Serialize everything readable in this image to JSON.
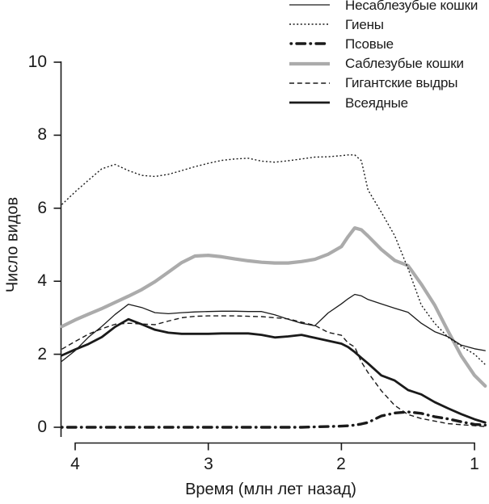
{
  "colors": {
    "line_black": "#1a1a1a",
    "saber_gray": "#ababab",
    "background": "#ffffff"
  },
  "legend": {
    "items": [
      {
        "key": "nonsabertooth-cats",
        "label": "Несаблезубые кошки",
        "style": "thin-solid",
        "color": "#1a1a1a"
      },
      {
        "key": "hyenas",
        "label": "Гиены",
        "style": "fine-dotted",
        "color": "#1a1a1a"
      },
      {
        "key": "canids",
        "label": "Псовые",
        "style": "bold-dash-dot",
        "color": "#1a1a1a"
      },
      {
        "key": "sabertooth-cats",
        "label": "Саблезубые кошки",
        "style": "thick-gray",
        "color": "#ababab"
      },
      {
        "key": "giant-otters",
        "label": "Гигантские выдры",
        "style": "dashed",
        "color": "#1a1a1a"
      },
      {
        "key": "omnivores",
        "label": "Всеядные",
        "style": "thick-solid",
        "color": "#1a1a1a"
      }
    ]
  },
  "chart_data": {
    "type": "line",
    "title": "",
    "xlabel": "Время (млн лет назад)",
    "ylabel": "Число видов",
    "xticks": [
      4,
      3,
      2,
      1
    ],
    "yticks": [
      0,
      2,
      4,
      6,
      8,
      10
    ],
    "ylim": [
      0,
      10
    ],
    "xlim": [
      4.1,
      0.92
    ],
    "x_axis_reversed": true,
    "grid": false,
    "legend_position": "top-right",
    "x": [
      4.1,
      4.0,
      3.9,
      3.8,
      3.7,
      3.6,
      3.5,
      3.4,
      3.3,
      3.2,
      3.1,
      3.0,
      2.9,
      2.8,
      2.7,
      2.6,
      2.5,
      2.4,
      2.3,
      2.2,
      2.1,
      2.0,
      1.95,
      1.9,
      1.85,
      1.8,
      1.7,
      1.6,
      1.5,
      1.4,
      1.3,
      1.2,
      1.1,
      1.0,
      0.92
    ],
    "series": [
      {
        "name": "Несаблезубые кошки",
        "key": "nonsabertooth-cats",
        "style": "thin-solid",
        "color": "#1a1a1a",
        "values": [
          1.81,
          2.1,
          2.47,
          2.76,
          3.09,
          3.37,
          3.28,
          3.14,
          3.11,
          3.14,
          3.16,
          3.17,
          3.18,
          3.18,
          3.17,
          3.17,
          3.08,
          2.96,
          2.85,
          2.78,
          3.13,
          3.38,
          3.52,
          3.64,
          3.6,
          3.5,
          3.38,
          3.26,
          3.15,
          2.85,
          2.62,
          2.48,
          2.25,
          2.15,
          2.1
        ]
      },
      {
        "name": "Гиены",
        "key": "hyenas",
        "style": "fine-dotted",
        "color": "#1a1a1a",
        "values": [
          6.1,
          6.45,
          6.77,
          7.08,
          7.2,
          7.03,
          6.9,
          6.87,
          6.93,
          7.03,
          7.14,
          7.23,
          7.31,
          7.35,
          7.37,
          7.29,
          7.26,
          7.3,
          7.35,
          7.4,
          7.41,
          7.44,
          7.46,
          7.46,
          7.3,
          6.5,
          5.89,
          5.25,
          4.35,
          3.35,
          2.85,
          2.47,
          2.22,
          2.0,
          1.72
        ]
      },
      {
        "name": "Псовые",
        "key": "canids",
        "style": "bold-dash-dot",
        "color": "#1a1a1a",
        "values": [
          0,
          0,
          0,
          0,
          0,
          0,
          0,
          0,
          0,
          0,
          0,
          0,
          0,
          0,
          0,
          0,
          0,
          0,
          0,
          0.01,
          0.02,
          0.03,
          0.04,
          0.06,
          0.09,
          0.13,
          0.31,
          0.39,
          0.42,
          0.38,
          0.29,
          0.23,
          0.15,
          0.08,
          0.06
        ]
      },
      {
        "name": "Саблезубые кошки",
        "key": "sabertooth-cats",
        "style": "thick-gray",
        "color": "#ababab",
        "values": [
          2.76,
          2.94,
          3.1,
          3.25,
          3.42,
          3.59,
          3.77,
          3.99,
          4.25,
          4.51,
          4.69,
          4.71,
          4.67,
          4.61,
          4.56,
          4.52,
          4.5,
          4.5,
          4.54,
          4.6,
          4.74,
          4.95,
          5.22,
          5.46,
          5.41,
          5.24,
          4.87,
          4.57,
          4.43,
          3.92,
          3.35,
          2.64,
          1.96,
          1.42,
          1.13
        ]
      },
      {
        "name": "Гигантские выдры",
        "key": "giant-otters",
        "style": "dashed",
        "color": "#1a1a1a",
        "values": [
          2.14,
          2.35,
          2.55,
          2.7,
          2.82,
          2.85,
          2.83,
          2.81,
          2.91,
          3.0,
          3.04,
          3.05,
          3.05,
          3.05,
          3.04,
          3.03,
          3.0,
          2.97,
          2.88,
          2.79,
          2.6,
          2.52,
          2.31,
          2.2,
          1.79,
          1.5,
          1.0,
          0.6,
          0.35,
          0.24,
          0.17,
          0.1,
          0.07,
          0.045,
          0.02
        ]
      },
      {
        "name": "Всеядные",
        "key": "omnivores",
        "style": "thick-solid",
        "color": "#1a1a1a",
        "values": [
          1.97,
          2.13,
          2.28,
          2.47,
          2.75,
          2.96,
          2.82,
          2.67,
          2.59,
          2.56,
          2.56,
          2.56,
          2.57,
          2.57,
          2.57,
          2.53,
          2.46,
          2.49,
          2.53,
          2.45,
          2.37,
          2.29,
          2.2,
          2.06,
          1.9,
          1.75,
          1.42,
          1.28,
          1.02,
          0.9,
          0.69,
          0.52,
          0.36,
          0.22,
          0.13
        ]
      }
    ]
  }
}
